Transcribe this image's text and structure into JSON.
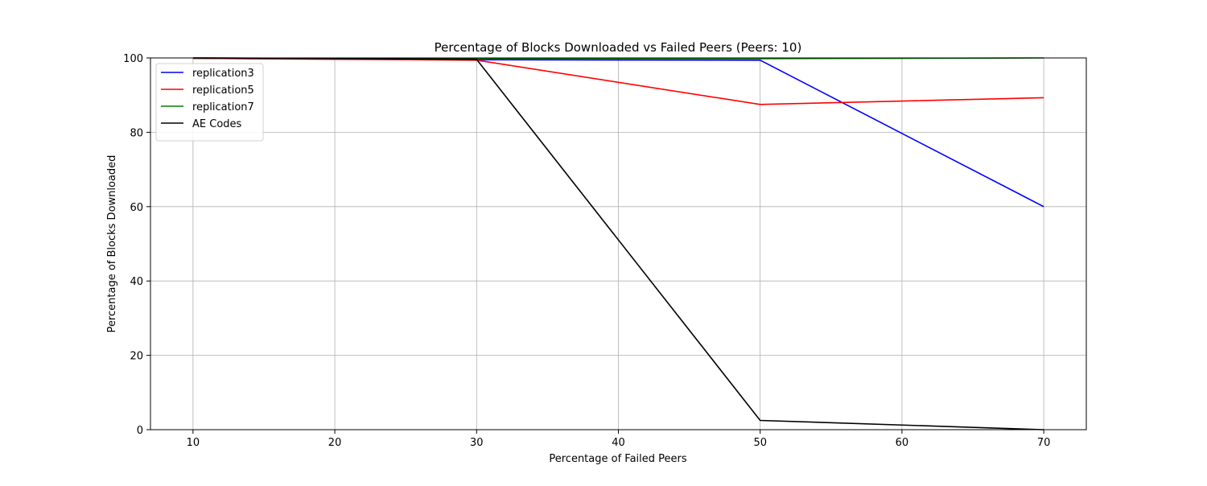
{
  "chart_data": {
    "type": "line",
    "title": "Percentage of Blocks Downloaded vs Failed Peers (Peers: 10)",
    "xlabel": "Percentage of Failed Peers",
    "ylabel": "Percentage of Blocks Downloaded",
    "xlim": [
      7,
      73
    ],
    "ylim": [
      0,
      100
    ],
    "xticks": [
      10,
      20,
      30,
      40,
      50,
      60,
      70
    ],
    "yticks": [
      0,
      20,
      40,
      60,
      80,
      100
    ],
    "grid": true,
    "legend_position": "upper-left",
    "x": [
      10,
      30,
      50,
      70
    ],
    "series": [
      {
        "name": "replication3",
        "color": "#0000ff",
        "values": [
          99.9,
          99.5,
          99.4,
          60.0
        ]
      },
      {
        "name": "replication5",
        "color": "#ff0000",
        "values": [
          99.9,
          99.4,
          87.5,
          89.3
        ]
      },
      {
        "name": "replication7",
        "color": "#008000",
        "values": [
          100.0,
          99.8,
          99.8,
          100.0
        ]
      },
      {
        "name": "AE Codes",
        "color": "#000000",
        "values": [
          100.0,
          99.6,
          2.5,
          0.0
        ]
      }
    ]
  }
}
